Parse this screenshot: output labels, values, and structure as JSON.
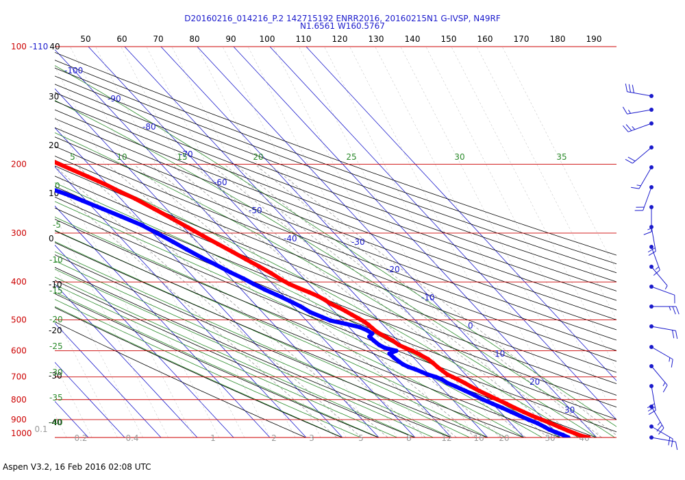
{
  "title": {
    "line1": "D20160216_014216_P.2 142715192 ENRR2016, 20160215N1 G-IVSP, N49RF",
    "line2": "N1.6561 W160.5767"
  },
  "footer": "Aspen V3.2, 16 Feb 2016  02:08 UTC",
  "colors": {
    "isobar": "#cc0000",
    "isotherm": "#1a1acc",
    "dry_adiabat": "#000000",
    "moist_adiabat": "#2a8a2a",
    "mixing_ratio": "#999999",
    "temperature": "#ff0000",
    "dewpoint": "#0000ff"
  },
  "chart_data": {
    "type": "skew-t",
    "pressure_levels": [
      "100",
      "200",
      "300",
      "400",
      "500",
      "600",
      "700",
      "800",
      "900",
      "1000"
    ],
    "top_pressure_label": "100",
    "top_isotherm_label": "-110",
    "pressure_range_hpa": [
      100,
      1000
    ],
    "temperature_range_c": [
      -110,
      40
    ],
    "top_axis_labels": [
      "40",
      "50",
      "60",
      "70",
      "80",
      "90",
      "100",
      "110",
      "120",
      "130",
      "140",
      "150",
      "160",
      "170",
      "180",
      "190"
    ],
    "left_labels_black": [
      "30",
      "20",
      "10",
      "0",
      "-10",
      "-20",
      "-30",
      "-40"
    ],
    "isotherm_labels": [
      "-100",
      "-90",
      "-80",
      "-70",
      "-60",
      "-50",
      "-40",
      "-30",
      "-20",
      "-10",
      "0",
      "10",
      "20",
      "30"
    ],
    "moist_adiabat_labels": [
      "5",
      "10",
      "15",
      "20",
      "25",
      "30",
      "35"
    ],
    "left_green_labels": [
      "0",
      "-5",
      "-10",
      "-15",
      "-20",
      "-25",
      "-30",
      "-35",
      "-40"
    ],
    "mixing_ratio_labels": [
      "0.1",
      "0.2",
      "0.4",
      "1",
      "2",
      "3",
      "5",
      "8",
      "12",
      "16",
      "20",
      "30",
      "40"
    ],
    "series": [
      {
        "key": "temperature",
        "points": [
          {
            "p": 1000,
            "t": 27.8
          },
          {
            "p": 990,
            "t": 26.2
          },
          {
            "p": 975,
            "t": 25.0
          },
          {
            "p": 960,
            "t": 23.8
          },
          {
            "p": 940,
            "t": 22.4
          },
          {
            "p": 920,
            "t": 21.0
          },
          {
            "p": 900,
            "t": 19.4
          },
          {
            "p": 880,
            "t": 17.8
          },
          {
            "p": 860,
            "t": 16.4
          },
          {
            "p": 840,
            "t": 15.0
          },
          {
            "p": 820,
            "t": 13.8
          },
          {
            "p": 800,
            "t": 12.4
          },
          {
            "p": 780,
            "t": 11.0
          },
          {
            "p": 760,
            "t": 9.6
          },
          {
            "p": 740,
            "t": 8.4
          },
          {
            "p": 725,
            "t": 7.6
          },
          {
            "p": 710,
            "t": 6.6
          },
          {
            "p": 700,
            "t": 5.8
          },
          {
            "p": 690,
            "t": 5.0
          },
          {
            "p": 675,
            "t": 4.6
          },
          {
            "p": 660,
            "t": 4.2
          },
          {
            "p": 645,
            "t": 4.0
          },
          {
            "p": 630,
            "t": 3.6
          },
          {
            "p": 615,
            "t": 2.6
          },
          {
            "p": 600,
            "t": 1.4
          },
          {
            "p": 590,
            "t": 0.2
          },
          {
            "p": 580,
            "t": -0.8
          },
          {
            "p": 565,
            "t": -1.4
          },
          {
            "p": 555,
            "t": -2.2
          },
          {
            "p": 545,
            "t": -3.0
          },
          {
            "p": 535,
            "t": -3.6
          },
          {
            "p": 525,
            "t": -3.8
          },
          {
            "p": 515,
            "t": -4.0
          },
          {
            "p": 505,
            "t": -4.4
          },
          {
            "p": 495,
            "t": -5.2
          },
          {
            "p": 485,
            "t": -6.0
          },
          {
            "p": 475,
            "t": -6.8
          },
          {
            "p": 465,
            "t": -7.8
          },
          {
            "p": 455,
            "t": -9.0
          },
          {
            "p": 445,
            "t": -9.6
          },
          {
            "p": 435,
            "t": -10.6
          },
          {
            "p": 425,
            "t": -12.0
          },
          {
            "p": 415,
            "t": -13.8
          },
          {
            "p": 405,
            "t": -15.4
          },
          {
            "p": 395,
            "t": -16.4
          },
          {
            "p": 380,
            "t": -17.6
          },
          {
            "p": 365,
            "t": -19.2
          },
          {
            "p": 350,
            "t": -21.0
          },
          {
            "p": 335,
            "t": -22.8
          },
          {
            "p": 320,
            "t": -24.8
          },
          {
            "p": 305,
            "t": -26.8
          },
          {
            "p": 290,
            "t": -28.8
          },
          {
            "p": 275,
            "t": -31.0
          },
          {
            "p": 260,
            "t": -33.4
          },
          {
            "p": 245,
            "t": -36.0
          },
          {
            "p": 235,
            "t": -38.4
          },
          {
            "p": 225,
            "t": -40.6
          },
          {
            "p": 215,
            "t": -43.4
          },
          {
            "p": 205,
            "t": -46.4
          },
          {
            "p": 195,
            "t": -49.6
          },
          {
            "p": 185,
            "t": -52.8
          },
          {
            "p": 177,
            "t": -55.2
          },
          {
            "p": 172,
            "t": -56.4
          }
        ],
        "isolated_point": {
          "p": 148,
          "t": -64.5
        }
      },
      {
        "key": "dewpoint",
        "points": [
          {
            "p": 1000,
            "t": 22.2
          },
          {
            "p": 985,
            "t": 21.4
          },
          {
            "p": 970,
            "t": 20.2
          },
          {
            "p": 955,
            "t": 19.0
          },
          {
            "p": 940,
            "t": 18.4
          },
          {
            "p": 920,
            "t": 17.4
          },
          {
            "p": 900,
            "t": 15.8
          },
          {
            "p": 880,
            "t": 14.4
          },
          {
            "p": 860,
            "t": 13.0
          },
          {
            "p": 840,
            "t": 11.6
          },
          {
            "p": 820,
            "t": 10.0
          },
          {
            "p": 800,
            "t": 8.4
          },
          {
            "p": 780,
            "t": 7.2
          },
          {
            "p": 760,
            "t": 5.8
          },
          {
            "p": 740,
            "t": 4.2
          },
          {
            "p": 725,
            "t": 2.8
          },
          {
            "p": 710,
            "t": 2.2
          },
          {
            "p": 700,
            "t": 1.2
          },
          {
            "p": 690,
            "t": -0.4
          },
          {
            "p": 680,
            "t": -1.4
          },
          {
            "p": 670,
            "t": -2.4
          },
          {
            "p": 660,
            "t": -3.8
          },
          {
            "p": 650,
            "t": -4.6
          },
          {
            "p": 640,
            "t": -5.0
          },
          {
            "p": 625,
            "t": -5.4
          },
          {
            "p": 610,
            "t": -5.6
          },
          {
            "p": 600,
            "t": -3.0
          },
          {
            "p": 590,
            "t": -5.4
          },
          {
            "p": 580,
            "t": -6.2
          },
          {
            "p": 565,
            "t": -6.6
          },
          {
            "p": 552,
            "t": -6.8
          },
          {
            "p": 542,
            "t": -5.2
          },
          {
            "p": 532,
            "t": -5.8
          },
          {
            "p": 522,
            "t": -7.0
          },
          {
            "p": 512,
            "t": -10.0
          },
          {
            "p": 502,
            "t": -13.4
          },
          {
            "p": 492,
            "t": -14.8
          },
          {
            "p": 478,
            "t": -16.8
          },
          {
            "p": 462,
            "t": -18.0
          },
          {
            "p": 448,
            "t": -19.6
          },
          {
            "p": 432,
            "t": -21.6
          },
          {
            "p": 418,
            "t": -23.6
          },
          {
            "p": 405,
            "t": -25.2
          },
          {
            "p": 392,
            "t": -26.6
          },
          {
            "p": 378,
            "t": -28.6
          },
          {
            "p": 362,
            "t": -30.6
          },
          {
            "p": 346,
            "t": -32.8
          },
          {
            "p": 330,
            "t": -34.8
          },
          {
            "p": 316,
            "t": -36.6
          },
          {
            "p": 300,
            "t": -38.8
          },
          {
            "p": 286,
            "t": -41.0
          },
          {
            "p": 272,
            "t": -44.4
          },
          {
            "p": 260,
            "t": -47.6
          },
          {
            "p": 248,
            "t": -51.0
          },
          {
            "p": 238,
            "t": -54.0
          },
          {
            "p": 228,
            "t": -58.0
          },
          {
            "p": 220,
            "t": -61.4
          },
          {
            "p": 213,
            "t": -64.4
          },
          {
            "p": 205,
            "t": -66.4
          },
          {
            "p": 197,
            "t": -68.6
          }
        ]
      }
    ],
    "wind_barbs": {
      "description_source": "right-side wind barb column",
      "levels_hpa": [
        1000,
        950,
        900,
        850,
        800,
        750,
        700,
        650,
        600,
        550,
        500,
        450,
        400,
        350,
        300,
        250,
        200,
        175,
        150
      ],
      "speed_kt": [
        10,
        20,
        25,
        30,
        15,
        15,
        20,
        25,
        10,
        5,
        15,
        20,
        15,
        20,
        15,
        20,
        25,
        15,
        30
      ],
      "direction_deg": [
        100,
        120,
        150,
        170,
        140,
        120,
        100,
        90,
        110,
        140,
        160,
        170,
        180,
        200,
        210,
        230,
        250,
        260,
        280
      ]
    }
  }
}
